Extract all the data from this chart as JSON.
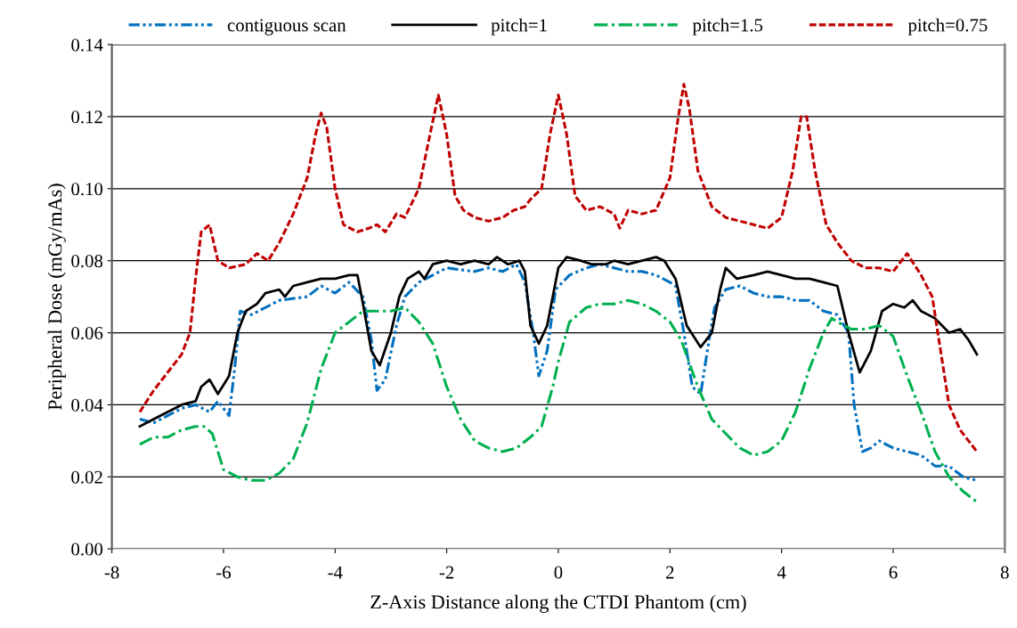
{
  "chart_data": {
    "type": "line",
    "xlabel": "Z-Axis Distance along the CTDI Phantom (cm)",
    "ylabel": "Peripheral Dose (mGy/mAs)",
    "xlim": [
      -8,
      8
    ],
    "xticks": [
      -8,
      -6,
      -4,
      -2,
      0,
      2,
      4,
      6,
      8
    ],
    "ylim": [
      0,
      0.14
    ],
    "yticks": [
      {
        "value": 0,
        "label": "0.00"
      },
      {
        "value": 0.02,
        "label": "0.02"
      },
      {
        "value": 0.04,
        "label": "0.04"
      },
      {
        "value": 0.06,
        "label": "0.06"
      },
      {
        "value": 0.08,
        "label": "0.08"
      },
      {
        "value": 0.1,
        "label": "0.10"
      },
      {
        "value": 0.12,
        "label": "0.12"
      },
      {
        "value": 0.14,
        "label": "0.14"
      }
    ],
    "grid": "y",
    "legend": "top",
    "marker": "none",
    "series": [
      {
        "name": "contiguous scan",
        "color": "#0070c0",
        "line_style": "dashdotdot",
        "x": [
          -7.5,
          -7.25,
          -7,
          -6.75,
          -6.5,
          -6.25,
          -6.1,
          -5.9,
          -5.8,
          -5.7,
          -5.5,
          -5.25,
          -5,
          -4.5,
          -4.25,
          -4,
          -3.75,
          -3.5,
          -3.35,
          -3.25,
          -3.1,
          -2.9,
          -2.75,
          -2.5,
          -2.25,
          -2,
          -1.5,
          -1.25,
          -1,
          -0.75,
          -0.6,
          -0.45,
          -0.35,
          -0.2,
          -0.05,
          0.2,
          0.5,
          0.75,
          1,
          1.25,
          1.5,
          1.75,
          2,
          2.1,
          2.25,
          2.4,
          2.55,
          2.7,
          2.8,
          3,
          3.25,
          3.5,
          3.75,
          4,
          4.25,
          4.5,
          4.75,
          5,
          5.2,
          5.3,
          5.45,
          5.6,
          5.75,
          6,
          6.25,
          6.5,
          6.75,
          7,
          7.25,
          7.5
        ],
        "values": [
          0.036,
          0.035,
          0.037,
          0.039,
          0.04,
          0.038,
          0.041,
          0.037,
          0.05,
          0.066,
          0.065,
          0.067,
          0.069,
          0.07,
          0.073,
          0.071,
          0.074,
          0.07,
          0.058,
          0.044,
          0.047,
          0.062,
          0.07,
          0.074,
          0.076,
          0.078,
          0.077,
          0.078,
          0.077,
          0.079,
          0.074,
          0.06,
          0.048,
          0.055,
          0.072,
          0.076,
          0.078,
          0.079,
          0.078,
          0.077,
          0.077,
          0.076,
          0.074,
          0.073,
          0.06,
          0.045,
          0.043,
          0.058,
          0.067,
          0.072,
          0.073,
          0.071,
          0.07,
          0.07,
          0.069,
          0.069,
          0.066,
          0.065,
          0.06,
          0.04,
          0.027,
          0.028,
          0.03,
          0.028,
          0.027,
          0.026,
          0.023,
          0.023,
          0.02,
          0.019
        ]
      },
      {
        "name": "pitch=1",
        "color": "#000000",
        "line_style": "solid",
        "x": [
          -7.5,
          -7.25,
          -7,
          -6.75,
          -6.5,
          -6.4,
          -6.25,
          -6.1,
          -5.9,
          -5.75,
          -5.6,
          -5.4,
          -5.25,
          -5,
          -4.9,
          -4.75,
          -4.5,
          -4.25,
          -4,
          -3.75,
          -3.6,
          -3.5,
          -3.35,
          -3.2,
          -3,
          -2.85,
          -2.7,
          -2.5,
          -2.4,
          -2.25,
          -2,
          -1.75,
          -1.5,
          -1.25,
          -1.1,
          -0.9,
          -0.7,
          -0.6,
          -0.5,
          -0.35,
          -0.2,
          0,
          0.15,
          0.4,
          0.6,
          0.85,
          1,
          1.25,
          1.5,
          1.75,
          1.9,
          2.1,
          2.3,
          2.55,
          2.75,
          2.9,
          3,
          3.2,
          3.5,
          3.75,
          4,
          4.25,
          4.5,
          4.75,
          5,
          5.2,
          5.4,
          5.6,
          5.8,
          6,
          6.2,
          6.35,
          6.5,
          6.75,
          7,
          7.2,
          7.35,
          7.5
        ],
        "values": [
          0.034,
          0.036,
          0.038,
          0.04,
          0.041,
          0.045,
          0.047,
          0.043,
          0.048,
          0.06,
          0.066,
          0.068,
          0.071,
          0.072,
          0.07,
          0.073,
          0.074,
          0.075,
          0.075,
          0.076,
          0.076,
          0.068,
          0.055,
          0.051,
          0.06,
          0.07,
          0.075,
          0.077,
          0.075,
          0.079,
          0.08,
          0.079,
          0.08,
          0.079,
          0.081,
          0.079,
          0.08,
          0.077,
          0.062,
          0.057,
          0.062,
          0.078,
          0.081,
          0.08,
          0.079,
          0.079,
          0.08,
          0.079,
          0.08,
          0.081,
          0.08,
          0.075,
          0.062,
          0.056,
          0.06,
          0.072,
          0.078,
          0.075,
          0.076,
          0.077,
          0.076,
          0.075,
          0.075,
          0.074,
          0.073,
          0.06,
          0.049,
          0.055,
          0.066,
          0.068,
          0.067,
          0.069,
          0.066,
          0.064,
          0.06,
          0.061,
          0.058,
          0.054
        ]
      },
      {
        "name": "pitch=1.5",
        "color": "#00b050",
        "line_style": "dashdot",
        "x": [
          -7.5,
          -7.25,
          -7,
          -6.75,
          -6.5,
          -6.35,
          -6.2,
          -6,
          -5.75,
          -5.5,
          -5.25,
          -5,
          -4.75,
          -4.5,
          -4.25,
          -4,
          -3.75,
          -3.5,
          -3.25,
          -3,
          -2.75,
          -2.5,
          -2.25,
          -2,
          -1.75,
          -1.5,
          -1.25,
          -1,
          -0.75,
          -0.5,
          -0.3,
          -0.1,
          0,
          0.2,
          0.5,
          0.75,
          1,
          1.25,
          1.5,
          1.75,
          2,
          2.2,
          2.5,
          2.75,
          3,
          3.25,
          3.5,
          3.75,
          4,
          4.25,
          4.5,
          4.75,
          4.9,
          5,
          5.25,
          5.5,
          5.75,
          6,
          6.25,
          6.5,
          6.75,
          7,
          7.25,
          7.5
        ],
        "values": [
          0.029,
          0.031,
          0.031,
          0.033,
          0.034,
          0.034,
          0.032,
          0.022,
          0.02,
          0.019,
          0.019,
          0.021,
          0.025,
          0.035,
          0.05,
          0.06,
          0.063,
          0.066,
          0.066,
          0.066,
          0.067,
          0.063,
          0.057,
          0.045,
          0.036,
          0.03,
          0.028,
          0.027,
          0.028,
          0.031,
          0.034,
          0.045,
          0.052,
          0.063,
          0.067,
          0.068,
          0.068,
          0.069,
          0.068,
          0.066,
          0.063,
          0.058,
          0.045,
          0.036,
          0.032,
          0.028,
          0.026,
          0.027,
          0.03,
          0.038,
          0.05,
          0.06,
          0.064,
          0.063,
          0.061,
          0.061,
          0.062,
          0.059,
          0.048,
          0.038,
          0.027,
          0.02,
          0.016,
          0.013
        ]
      },
      {
        "name": "pitch=0.75",
        "color": "#c00000",
        "line_style": "dashed",
        "x": [
          -7.5,
          -7.25,
          -7,
          -6.75,
          -6.6,
          -6.5,
          -6.4,
          -6.25,
          -6.1,
          -5.9,
          -5.6,
          -5.4,
          -5.2,
          -5,
          -4.75,
          -4.5,
          -4.35,
          -4.25,
          -4.15,
          -4,
          -3.85,
          -3.6,
          -3.4,
          -3.25,
          -3.1,
          -2.9,
          -2.75,
          -2.5,
          -2.3,
          -2.15,
          -2,
          -1.85,
          -1.7,
          -1.5,
          -1.25,
          -1,
          -0.8,
          -0.6,
          -0.5,
          -0.3,
          -0.15,
          0,
          0.15,
          0.3,
          0.5,
          0.75,
          1,
          1.1,
          1.25,
          1.5,
          1.75,
          2,
          2.15,
          2.25,
          2.35,
          2.5,
          2.75,
          3,
          3.25,
          3.5,
          3.75,
          4,
          4.2,
          4.35,
          4.45,
          4.6,
          4.8,
          5,
          5.25,
          5.5,
          5.75,
          6,
          6.25,
          6.5,
          6.7,
          6.8,
          6.9,
          7,
          7.2,
          7.5
        ],
        "values": [
          0.038,
          0.044,
          0.049,
          0.054,
          0.06,
          0.075,
          0.088,
          0.09,
          0.08,
          0.078,
          0.079,
          0.082,
          0.08,
          0.085,
          0.093,
          0.103,
          0.115,
          0.121,
          0.117,
          0.1,
          0.09,
          0.088,
          0.089,
          0.09,
          0.088,
          0.093,
          0.092,
          0.1,
          0.115,
          0.126,
          0.115,
          0.098,
          0.094,
          0.092,
          0.091,
          0.092,
          0.094,
          0.095,
          0.097,
          0.1,
          0.115,
          0.126,
          0.115,
          0.098,
          0.094,
          0.095,
          0.093,
          0.089,
          0.094,
          0.093,
          0.094,
          0.103,
          0.12,
          0.129,
          0.122,
          0.105,
          0.095,
          0.092,
          0.091,
          0.09,
          0.089,
          0.092,
          0.105,
          0.12,
          0.12,
          0.105,
          0.09,
          0.085,
          0.08,
          0.078,
          0.078,
          0.077,
          0.082,
          0.076,
          0.07,
          0.06,
          0.05,
          0.04,
          0.033,
          0.027
        ]
      }
    ]
  }
}
